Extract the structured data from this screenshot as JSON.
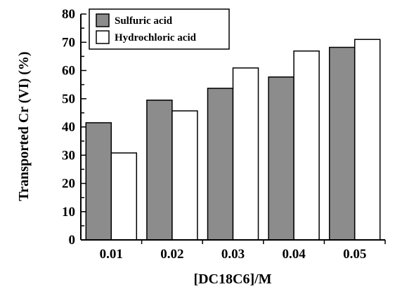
{
  "chart_data": {
    "type": "bar",
    "title": "",
    "xlabel": "[DC18C6]/M",
    "ylabel": "Transported Cr (VI) (%)",
    "categories": [
      "0.01",
      "0.02",
      "0.03",
      "0.04",
      "0.05"
    ],
    "series": [
      {
        "name": "Sulfuric acid",
        "color": "#8c8c8c",
        "values": [
          41.5,
          49.5,
          53.7,
          57.7,
          68.2
        ]
      },
      {
        "name": "Hydrochloric acid",
        "color": "#ffffff",
        "values": [
          30.8,
          45.7,
          60.9,
          66.9,
          71.0
        ]
      }
    ],
    "ylim": [
      0,
      80
    ],
    "yticks": [
      "0",
      "10",
      "20",
      "30",
      "40",
      "50",
      "60",
      "70",
      "80"
    ],
    "grid": false,
    "legend_position": "top-left"
  }
}
